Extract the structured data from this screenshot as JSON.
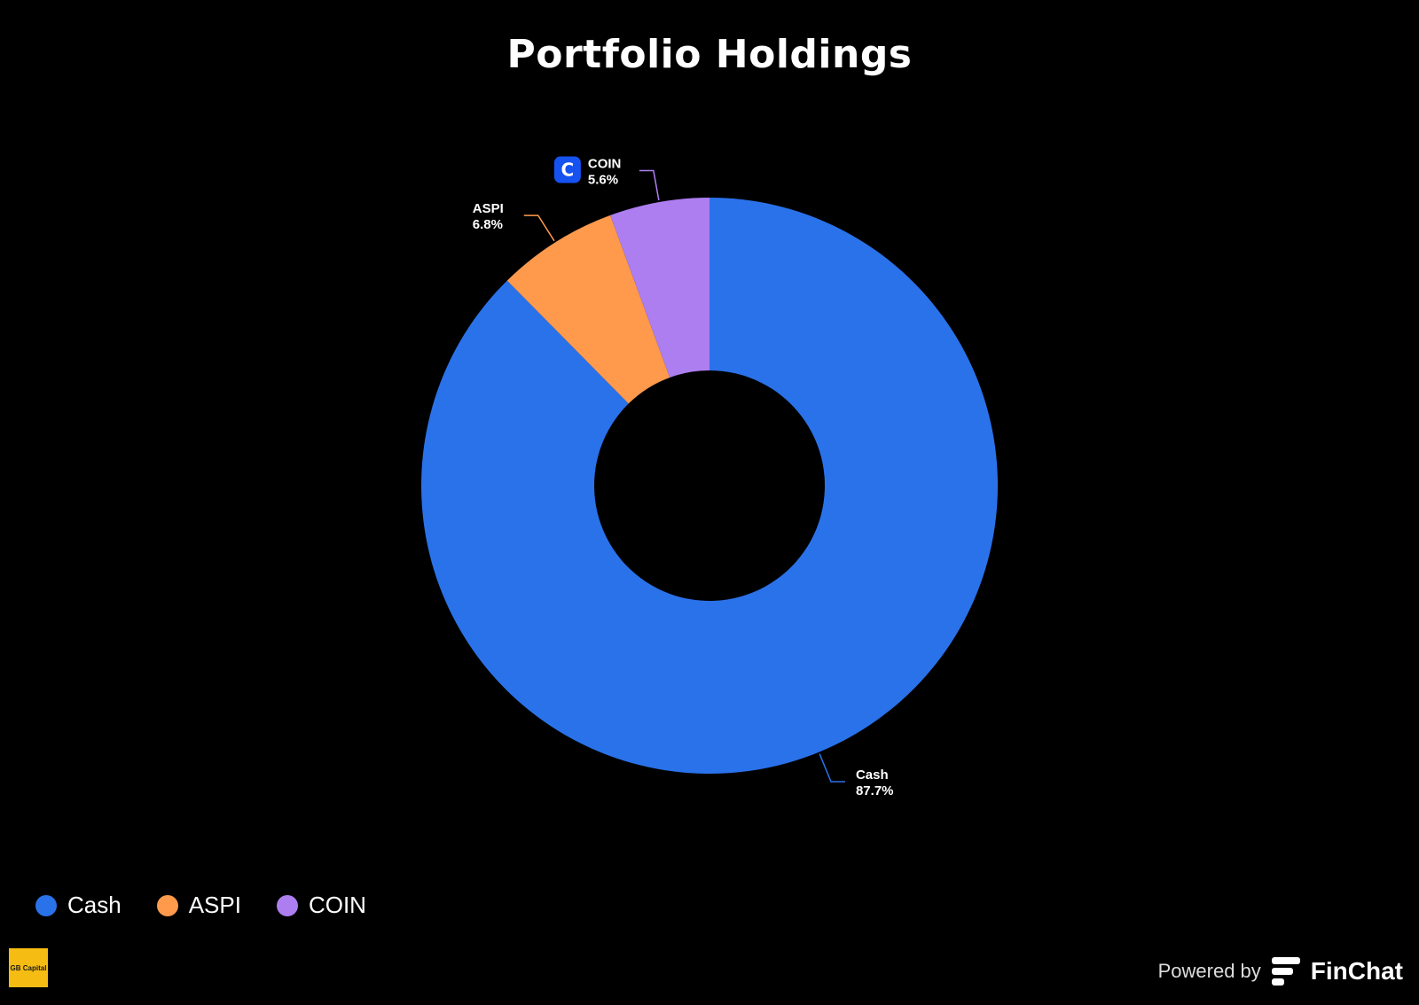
{
  "chart_data": {
    "type": "pie",
    "title": "Portfolio Holdings",
    "donut": true,
    "slices": [
      {
        "name": "Cash",
        "value": 87.7,
        "label": "87.7%",
        "color": "#2a72ea"
      },
      {
        "name": "ASPI",
        "value": 6.8,
        "label": "6.8%",
        "color": "#ff9a4d"
      },
      {
        "name": "COIN",
        "value": 5.6,
        "label": "5.6%",
        "color": "#ad7ef0"
      }
    ],
    "legend_position": "bottom-left",
    "coin_icon_letter": "C",
    "coin_icon_color": "#1652f0"
  },
  "legend": {
    "items": [
      {
        "label": "Cash",
        "color": "#2a72ea"
      },
      {
        "label": "ASPI",
        "color": "#ff9a4d"
      },
      {
        "label": "COIN",
        "color": "#ad7ef0"
      }
    ]
  },
  "footer": {
    "brand_logo_text": "GB Capital",
    "powered_by": "Powered by",
    "product_name": "FinChat"
  }
}
